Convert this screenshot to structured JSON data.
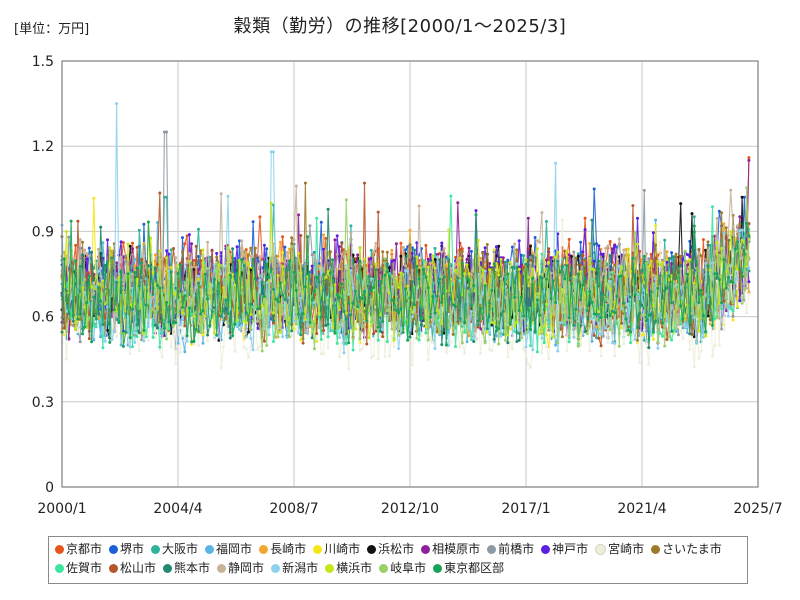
{
  "unit_label": "[単位：万円]",
  "chart_title": "穀類（勤労）の推移[2000/1～2025/3]",
  "chart_data": {
    "type": "line",
    "title": "穀類（勤労）の推移[2000/1～2025/3]",
    "unit": "[単位：万円]",
    "x_range": [
      "2000/1",
      "2025/7"
    ],
    "x_ticks": [
      "2000/1",
      "2004/4",
      "2008/7",
      "2012/10",
      "2017/1",
      "2021/4",
      "2025/7"
    ],
    "ylim": [
      0,
      1.5
    ],
    "y_ticks": [
      "0",
      "0.3",
      "0.6",
      "0.9",
      "1.2",
      "1.5"
    ],
    "grid": true,
    "legend_placement": "bottom",
    "series": [
      {
        "name": "京都市",
        "color": "#e8541c",
        "mean": 0.72,
        "peaks": [
          [
            2025.2,
            1.16
          ]
        ]
      },
      {
        "name": "堺市",
        "color": "#1a5fd6",
        "mean": 0.71,
        "peaks": [
          [
            2025.0,
            1.02
          ]
        ]
      },
      {
        "name": "大阪市",
        "color": "#2bb39a",
        "mean": 0.68,
        "peaks": [
          [
            2003.8,
            1.02
          ]
        ]
      },
      {
        "name": "福岡市",
        "color": "#5bb4e6",
        "mean": 0.65,
        "peaks": []
      },
      {
        "name": "長崎市",
        "color": "#f0a830",
        "mean": 0.7,
        "peaks": []
      },
      {
        "name": "川崎市",
        "color": "#f5e61a",
        "mean": 0.66,
        "peaks": []
      },
      {
        "name": "浜松市",
        "color": "#111111",
        "mean": 0.68,
        "peaks": [
          [
            2024.9,
            1.02
          ]
        ]
      },
      {
        "name": "相模原市",
        "color": "#8e1f9a",
        "mean": 0.69,
        "peaks": [
          [
            2025.2,
            1.15
          ]
        ]
      },
      {
        "name": "前橋市",
        "color": "#8c9aa6",
        "mean": 0.66,
        "peaks": [
          [
            2003.8,
            1.25
          ]
        ]
      },
      {
        "name": "神戸市",
        "color": "#5a1fe0",
        "mean": 0.7,
        "peaks": []
      },
      {
        "name": "宮崎市",
        "color": "#efeedd",
        "mean": 0.58,
        "peaks": []
      },
      {
        "name": "さいたま市",
        "color": "#9c7a28",
        "mean": 0.69,
        "peaks": [
          [
            2008.9,
            1.07
          ]
        ]
      },
      {
        "name": "佐賀市",
        "color": "#3de6a0",
        "mean": 0.64,
        "peaks": []
      },
      {
        "name": "松山市",
        "color": "#b5562a",
        "mean": 0.67,
        "peaks": [
          [
            2011.1,
            1.07
          ]
        ]
      },
      {
        "name": "熊本市",
        "color": "#1f8a70",
        "mean": 0.66,
        "peaks": []
      },
      {
        "name": "静岡市",
        "color": "#c8b39a",
        "mean": 0.7,
        "peaks": [
          [
            2008.6,
            1.06
          ]
        ]
      },
      {
        "name": "新潟市",
        "color": "#8ed1ee",
        "mean": 0.64,
        "peaks": [
          [
            2002.0,
            1.35
          ],
          [
            2007.7,
            1.18
          ],
          [
            2018.1,
            1.14
          ]
        ]
      },
      {
        "name": "横浜市",
        "color": "#c6e61a",
        "mean": 0.68,
        "peaks": []
      },
      {
        "name": "岐阜市",
        "color": "#9ad06a",
        "mean": 0.65,
        "peaks": []
      },
      {
        "name": "東京都区部",
        "color": "#19a35a",
        "mean": 0.66,
        "peaks": []
      }
    ]
  }
}
